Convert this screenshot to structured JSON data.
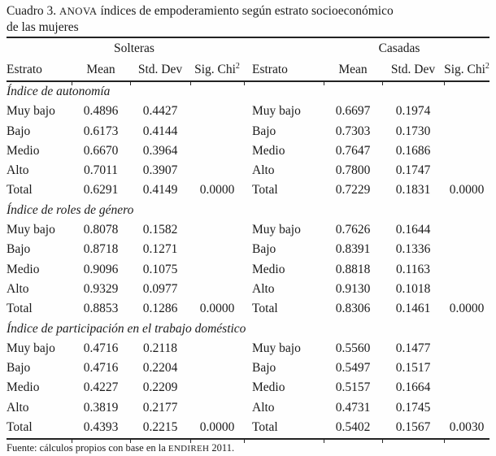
{
  "title": {
    "prefix": "Cuadro 3. ",
    "acronym": "ANOVA",
    "rest": " índices de empoderamiento según estrato socioeconómico",
    "line2": "de las mujeres"
  },
  "groups": {
    "left": "Solteras",
    "right": "Casadas"
  },
  "columns": {
    "estrato": "Estrato",
    "mean": "Mean",
    "std": "Std. Dev",
    "sig": "Sig. Chi",
    "sig_sup": "2"
  },
  "sections": [
    {
      "title": "Índice de autonomía",
      "rows": [
        {
          "left": {
            "label": "Muy bajo",
            "mean": "0.4896",
            "std": "0.4427",
            "sig": ""
          },
          "right": {
            "label": "Muy bajo",
            "mean": "0.6697",
            "std": "0.1974",
            "sig": ""
          }
        },
        {
          "left": {
            "label": "Bajo",
            "mean": "0.6173",
            "std": "0.4144",
            "sig": ""
          },
          "right": {
            "label": "Bajo",
            "mean": "0.7303",
            "std": "0.1730",
            "sig": ""
          }
        },
        {
          "left": {
            "label": "Medio",
            "mean": "0.6670",
            "std": "0.3964",
            "sig": ""
          },
          "right": {
            "label": "Medio",
            "mean": "0.7647",
            "std": "0.1686",
            "sig": ""
          }
        },
        {
          "left": {
            "label": "Alto",
            "mean": "0.7011",
            "std": "0.3907",
            "sig": ""
          },
          "right": {
            "label": "Alto",
            "mean": "0.7800",
            "std": "0.1747",
            "sig": ""
          }
        },
        {
          "left": {
            "label": "Total",
            "mean": "0.6291",
            "std": "0.4149",
            "sig": "0.0000"
          },
          "right": {
            "label": "Total",
            "mean": "0.7229",
            "std": "0.1831",
            "sig": "0.0000"
          }
        }
      ]
    },
    {
      "title": "Índice de roles de género",
      "rows": [
        {
          "left": {
            "label": "Muy bajo",
            "mean": "0.8078",
            "std": "0.1582",
            "sig": ""
          },
          "right": {
            "label": "Muy bajo",
            "mean": "0.7626",
            "std": "0.1644",
            "sig": ""
          }
        },
        {
          "left": {
            "label": "Bajo",
            "mean": "0.8718",
            "std": "0.1271",
            "sig": ""
          },
          "right": {
            "label": "Bajo",
            "mean": "0.8391",
            "std": "0.1336",
            "sig": ""
          }
        },
        {
          "left": {
            "label": "Medio",
            "mean": "0.9096",
            "std": "0.1075",
            "sig": ""
          },
          "right": {
            "label": "Medio",
            "mean": "0.8818",
            "std": "0.1163",
            "sig": ""
          }
        },
        {
          "left": {
            "label": "Alto",
            "mean": "0.9329",
            "std": "0.0977",
            "sig": ""
          },
          "right": {
            "label": "Alto",
            "mean": "0.9130",
            "std": "0.1018",
            "sig": ""
          }
        },
        {
          "left": {
            "label": "Total",
            "mean": "0.8853",
            "std": "0.1286",
            "sig": "0.0000"
          },
          "right": {
            "label": "Total",
            "mean": "0.8306",
            "std": "0.1461",
            "sig": "0.0000"
          }
        }
      ]
    },
    {
      "title": "Índice de participación en el trabajo doméstico",
      "rows": [
        {
          "left": {
            "label": "Muy bajo",
            "mean": "0.4716",
            "std": "0.2118",
            "sig": ""
          },
          "right": {
            "label": "Muy bajo",
            "mean": "0.5560",
            "std": "0.1477",
            "sig": ""
          }
        },
        {
          "left": {
            "label": "Bajo",
            "mean": "0.4716",
            "std": "0.2204",
            "sig": ""
          },
          "right": {
            "label": "Bajo",
            "mean": "0.5497",
            "std": "0.1517",
            "sig": ""
          }
        },
        {
          "left": {
            "label": "Medio",
            "mean": "0.4227",
            "std": "0.2209",
            "sig": ""
          },
          "right": {
            "label": "Medio",
            "mean": "0.5157",
            "std": "0.1664",
            "sig": ""
          }
        },
        {
          "left": {
            "label": "Alto",
            "mean": "0.3819",
            "std": "0.2177",
            "sig": ""
          },
          "right": {
            "label": "Alto",
            "mean": "0.4731",
            "std": "0.1745",
            "sig": ""
          }
        },
        {
          "left": {
            "label": "Total",
            "mean": "0.4393",
            "std": "0.2215",
            "sig": "0.0000"
          },
          "right": {
            "label": "Total",
            "mean": "0.5402",
            "std": "0.1567",
            "sig": "0.0030"
          }
        }
      ]
    }
  ],
  "footer": {
    "prefix": "Fuente: cálculos propios con base en la ",
    "acronym": "ENDIREH",
    "suffix": " 2011."
  },
  "colors": {
    "text": "#1b1b1b",
    "rule": "#222222",
    "background": "#fefefe"
  }
}
